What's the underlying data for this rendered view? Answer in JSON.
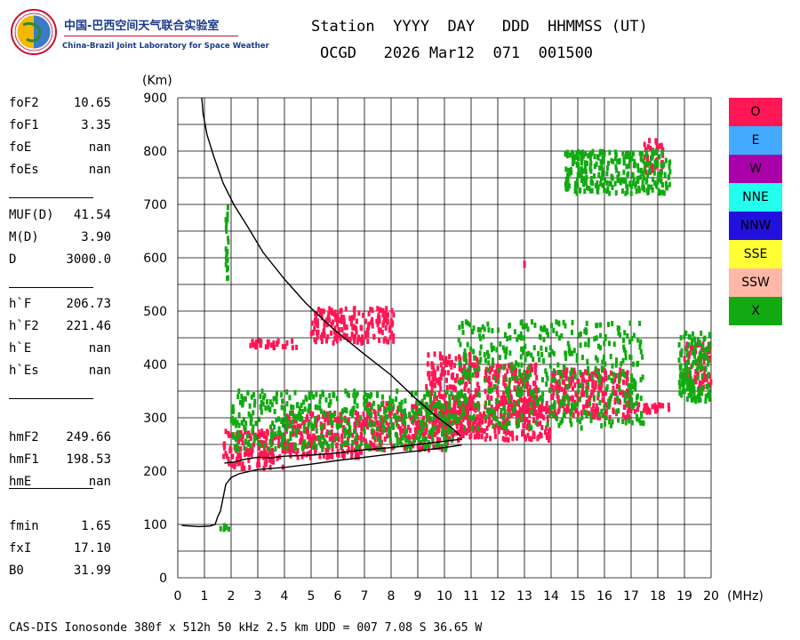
{
  "logo": {
    "title_cn": "中国-巴西空间天气联合实验室",
    "title_en": "China-Brazil Joint Laboratory for Space Weather"
  },
  "header": {
    "line1": "Station  YYYY  DAY   DDD  HHMMSS (UT)",
    "line2": "OCGD   2026 Mar12  071  001500"
  },
  "params": [
    {
      "name": "foF2",
      "value": "10.65"
    },
    {
      "name": "foF1",
      "value": "3.35"
    },
    {
      "name": "foE",
      "value": "nan"
    },
    {
      "name": "foEs",
      "value": "nan"
    },
    {
      "name": "MUF(D)",
      "value": "41.54"
    },
    {
      "name": "M(D)",
      "value": "3.90"
    },
    {
      "name": "D",
      "value": "3000.0"
    },
    {
      "name": "h`F",
      "value": "206.73"
    },
    {
      "name": "h`F2",
      "value": "221.46"
    },
    {
      "name": "h`E",
      "value": "nan"
    },
    {
      "name": "h`Es",
      "value": "nan"
    },
    {
      "name": "hmF2",
      "value": "249.66"
    },
    {
      "name": "hmF1",
      "value": "198.53"
    },
    {
      "name": "hmE",
      "value": "nan"
    },
    {
      "name": "fmin",
      "value": "1.65"
    },
    {
      "name": "fxI",
      "value": "17.10"
    },
    {
      "name": "B0",
      "value": "31.99"
    }
  ],
  "legend": [
    {
      "label": "O",
      "color": "#ff1654"
    },
    {
      "label": "E",
      "color": "#44aaff"
    },
    {
      "label": "W",
      "color": "#aa00aa"
    },
    {
      "label": "NNE",
      "color": "#22ffee"
    },
    {
      "label": "NNW",
      "color": "#2211dd"
    },
    {
      "label": "SSE",
      "color": "#ffff33"
    },
    {
      "label": "SSW",
      "color": "#ffb8a8"
    },
    {
      "label": "X",
      "color": "#11aa11"
    }
  ],
  "footer": "CAS-DIS Ionosonde 380f x 512h 50 kHz 2.5 km UDD = 007 7.08 S 36.65 W",
  "chart_data": {
    "type": "scatter",
    "title": "",
    "xlabel": "(MHz)",
    "ylabel": "(Km)",
    "xlim": [
      0,
      20
    ],
    "ylim": [
      0,
      900
    ],
    "x_ticks": [
      "0",
      "1",
      "2",
      "3",
      "4",
      "5",
      "6",
      "7",
      "8",
      "9",
      "10",
      "11",
      "12",
      "13",
      "14",
      "15",
      "16",
      "17",
      "18",
      "19",
      "20"
    ],
    "y_ticks": [
      "0",
      "100",
      "200",
      "300",
      "400",
      "500",
      "600",
      "700",
      "800",
      "900"
    ],
    "grid": true,
    "series": [
      {
        "name": "O",
        "color": "#ff1654",
        "echo_regions": [
          {
            "x": [
              1.7,
              4.0
            ],
            "y": [
              205,
              275
            ]
          },
          {
            "x": [
              4.0,
              7.0
            ],
            "y": [
              225,
              310
            ]
          },
          {
            "x": [
              7.0,
              10.3
            ],
            "y": [
              240,
              330
            ]
          },
          {
            "x": [
              9.3,
              11.3
            ],
            "y": [
              270,
              420
            ]
          },
          {
            "x": [
              10.3,
              14.0
            ],
            "y": [
              258,
              330
            ]
          },
          {
            "x": [
              11.5,
              13.5
            ],
            "y": [
              300,
              400
            ]
          },
          {
            "x": [
              14.0,
              17.0
            ],
            "y": [
              300,
              390
            ]
          },
          {
            "x": [
              17.0,
              18.5
            ],
            "y": [
              310,
              325
            ]
          },
          {
            "x": [
              19.0,
              20.0
            ],
            "y": [
              350,
              440
            ]
          },
          {
            "x": [
              5.0,
              8.1
            ],
            "y": [
              440,
              505
            ]
          },
          {
            "x": [
              2.7,
              4.5
            ],
            "y": [
              430,
              445
            ]
          },
          {
            "x": [
              13.0,
              13.0
            ],
            "y": [
              585,
              592
            ]
          },
          {
            "x": [
              17.5,
              18.2
            ],
            "y": [
              760,
              820
            ]
          }
        ]
      },
      {
        "name": "X",
        "color": "#11aa11",
        "echo_regions": [
          {
            "x": [
              2.0,
              10.5
            ],
            "y": [
              240,
              350
            ]
          },
          {
            "x": [
              10.5,
              17.5
            ],
            "y": [
              280,
              480
            ]
          },
          {
            "x": [
              14.5,
              18.5
            ],
            "y": [
              720,
              800
            ]
          },
          {
            "x": [
              18.8,
              20.0
            ],
            "y": [
              330,
              460
            ]
          },
          {
            "x": [
              1.6,
              2.0
            ],
            "y": [
              90,
              100
            ]
          },
          {
            "x": [
              1.8,
              1.9
            ],
            "y": [
              560,
              700
            ]
          }
        ]
      }
    ],
    "traces": [
      {
        "name": "virtual-height-trace",
        "color": "#000000",
        "points": [
          [
            0.15,
            98
          ],
          [
            0.8,
            96
          ],
          [
            1.2,
            97
          ],
          [
            1.4,
            100
          ],
          [
            1.5,
            115
          ],
          [
            1.6,
            125
          ],
          [
            1.7,
            150
          ],
          [
            1.8,
            175
          ],
          [
            2.0,
            188
          ],
          [
            2.3,
            195
          ],
          [
            3.0,
            203
          ],
          [
            4.0,
            207
          ],
          [
            5.0,
            213
          ],
          [
            6.0,
            220
          ],
          [
            7.0,
            226
          ],
          [
            8.0,
            232
          ],
          [
            9.0,
            238
          ],
          [
            10.0,
            244
          ],
          [
            10.65,
            249
          ]
        ]
      },
      {
        "name": "profile-inner-trace",
        "color": "#000000",
        "points": [
          [
            1.75,
            215
          ],
          [
            2.1,
            217
          ],
          [
            2.5,
            222
          ],
          [
            3.0,
            226
          ],
          [
            3.5,
            225
          ],
          [
            4.0,
            228
          ],
          [
            5.0,
            230
          ],
          [
            6.0,
            234
          ],
          [
            7.0,
            240
          ],
          [
            8.0,
            244
          ],
          [
            9.0,
            250
          ],
          [
            10.0,
            256
          ],
          [
            10.65,
            260
          ]
        ]
      },
      {
        "name": "electron-density-profile",
        "color": "#000000",
        "points": [
          [
            0.9,
            900
          ],
          [
            0.95,
            870
          ],
          [
            1.1,
            830
          ],
          [
            1.35,
            790
          ],
          [
            1.7,
            740
          ],
          [
            2.1,
            700
          ],
          [
            2.6,
            660
          ],
          [
            3.2,
            610
          ],
          [
            4.0,
            560
          ],
          [
            4.8,
            515
          ],
          [
            5.8,
            468
          ],
          [
            6.9,
            423
          ],
          [
            8.0,
            380
          ],
          [
            8.9,
            337
          ],
          [
            9.7,
            302
          ],
          [
            10.3,
            280
          ],
          [
            10.6,
            266
          ]
        ]
      }
    ]
  }
}
